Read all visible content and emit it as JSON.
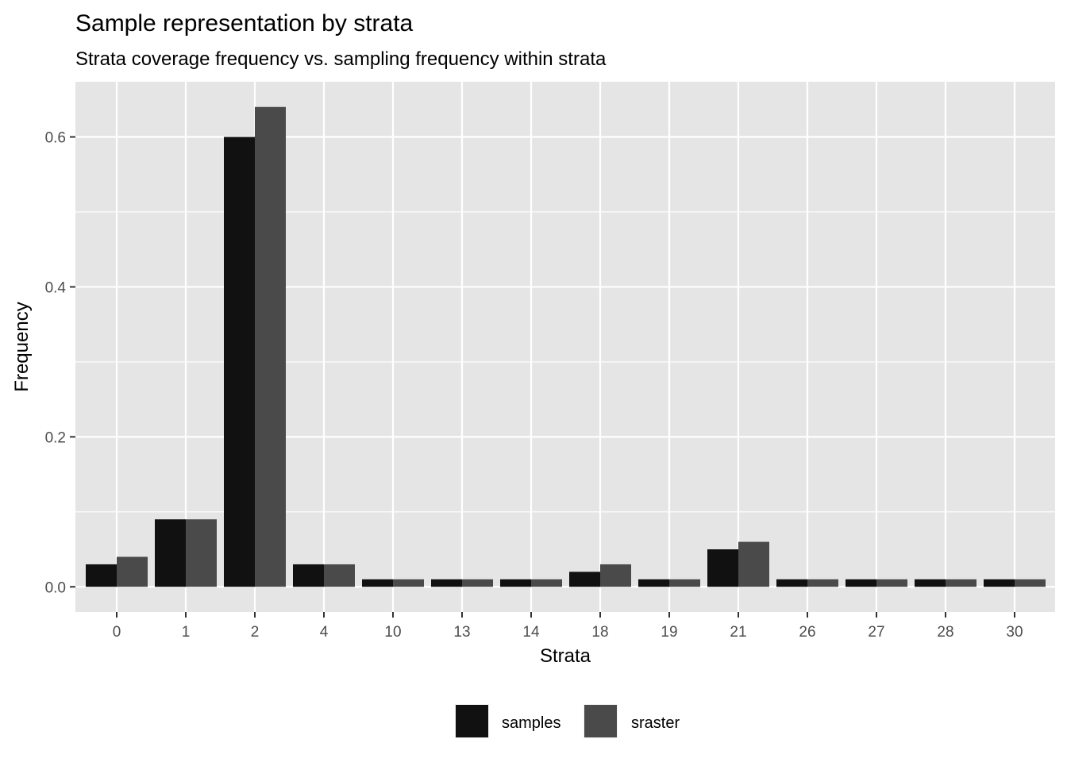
{
  "chart_data": {
    "type": "bar",
    "title": "Sample representation by strata",
    "subtitle": "Strata coverage frequency vs. sampling frequency within strata",
    "xlabel": "Strata",
    "ylabel": "Frequency",
    "categories": [
      "0",
      "1",
      "2",
      "4",
      "10",
      "13",
      "14",
      "18",
      "19",
      "21",
      "26",
      "27",
      "28",
      "30"
    ],
    "series": [
      {
        "name": "samples",
        "color": "#111111",
        "values": [
          0.03,
          0.09,
          0.6,
          0.03,
          0.01,
          0.01,
          0.01,
          0.02,
          0.01,
          0.05,
          0.01,
          0.01,
          0.01,
          0.01
        ]
      },
      {
        "name": "sraster",
        "color": "#4a4a4a",
        "values": [
          0.04,
          0.09,
          0.64,
          0.03,
          0.01,
          0.01,
          0.01,
          0.03,
          0.01,
          0.06,
          0.01,
          0.01,
          0.01,
          0.01
        ]
      }
    ],
    "ylim": [
      -0.0336,
      0.6736
    ],
    "yticks": [
      0.0,
      0.2,
      0.4,
      0.6
    ],
    "ytick_labels": [
      "0.0",
      "0.2",
      "0.4",
      "0.6"
    ],
    "grid": true,
    "panel_background": "#e5e5e5",
    "grid_color": "#ffffff",
    "legend_position": "bottom"
  }
}
